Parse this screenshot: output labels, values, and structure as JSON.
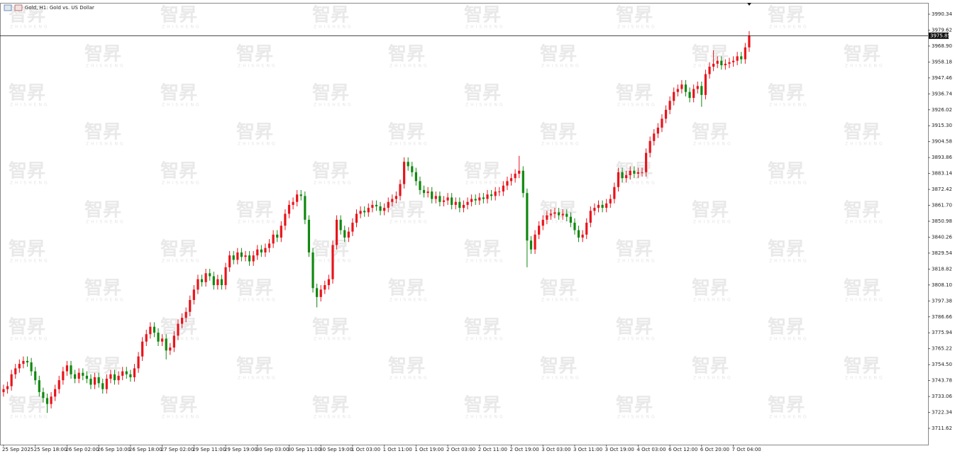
{
  "chart_data": {
    "type": "candlestick",
    "title": "Gold, H1: Gold vs. US Dollar",
    "watermark": {
      "text": "智昇",
      "subtext": "ZHISHENG"
    },
    "up_color": "#e8141c",
    "down_color": "#118811",
    "current_price": 3975.85,
    "ylim": [
      3700.64,
      3997.98
    ],
    "yticks": [
      3990.34,
      3979.62,
      {
        "value": 3968.9,
        "label": "3968.90"
      },
      3958.18,
      3947.46,
      3936.74,
      3926.02,
      {
        "value": 3915.3,
        "label": "3915.30"
      },
      3904.58,
      3893.86,
      3883.14,
      3872.42,
      {
        "value": 3861.7,
        "label": "3861.70"
      },
      3850.98,
      3840.26,
      3829.54,
      3818.82,
      {
        "value": 3808.1,
        "label": "3808.10"
      },
      3797.38,
      3786.66,
      3775.94,
      3765.22,
      {
        "value": 3754.5,
        "label": "3754.50"
      },
      3743.78,
      3733.06,
      3722.34,
      3711.62
    ],
    "categories": [
      "25 Sep 2025",
      null,
      null,
      null,
      null,
      null,
      null,
      null,
      "25 Sep 18:00",
      null,
      null,
      null,
      null,
      null,
      null,
      null,
      "26 Sep 02:00",
      null,
      null,
      null,
      null,
      null,
      null,
      null,
      "26 Sep 10:00",
      null,
      null,
      null,
      null,
      null,
      null,
      null,
      "26 Sep 18:00",
      null,
      null,
      null,
      null,
      null,
      null,
      null,
      "27 Sep 02:00",
      null,
      null,
      null,
      null,
      null,
      null,
      null,
      "29 Sep 11:00",
      null,
      null,
      null,
      null,
      null,
      null,
      null,
      "29 Sep 19:00",
      null,
      null,
      null,
      null,
      null,
      null,
      null,
      "30 Sep 03:00",
      null,
      null,
      null,
      null,
      null,
      null,
      null,
      "30 Sep 11:00",
      null,
      null,
      null,
      null,
      null,
      null,
      null,
      "30 Sep 19:00",
      null,
      null,
      null,
      null,
      null,
      null,
      null,
      "1 Oct 03:00",
      null,
      null,
      null,
      null,
      null,
      null,
      null,
      "1 Oct 11:00",
      null,
      null,
      null,
      null,
      null,
      null,
      null,
      "1 Oct 19:00",
      null,
      null,
      null,
      null,
      null,
      null,
      null,
      "2 Oct 03:00",
      null,
      null,
      null,
      null,
      null,
      null,
      null,
      "2 Oct 11:00",
      null,
      null,
      null,
      null,
      null,
      null,
      null,
      "2 Oct 19:00",
      null,
      null,
      null,
      null,
      null,
      null,
      null,
      "3 Oct 03:00",
      null,
      null,
      null,
      null,
      null,
      null,
      null,
      "3 Oct 11:00",
      null,
      null,
      null,
      null,
      null,
      null,
      null,
      "3 Oct 19:00",
      null,
      null,
      null,
      null,
      null,
      null,
      null,
      "4 Oct 03:00",
      null,
      null,
      null,
      null,
      null,
      null,
      null,
      "6 Oct 12:00",
      null,
      null,
      null,
      null,
      null,
      null,
      null,
      "6 Oct 20:00",
      null,
      null,
      null,
      null,
      null,
      null,
      null,
      "7 Oct 04:00",
      null,
      null,
      null,
      null
    ],
    "open": [
      3736,
      3738,
      3740,
      3748,
      3752,
      3755,
      3757,
      3756,
      3750,
      3744,
      3736,
      3732,
      3728,
      3733,
      3738,
      3744,
      3750,
      3754,
      3748,
      3745,
      3749,
      3747,
      3745,
      3741,
      3746,
      3742,
      3738,
      3745,
      3748,
      3744,
      3747,
      3750,
      3748,
      3746,
      3752,
      3760,
      3770,
      3775,
      3780,
      3776,
      3770,
      3772,
      3764,
      3766,
      3774,
      3782,
      3786,
      3790,
      3798,
      3805,
      3812,
      3810,
      3816,
      3814,
      3808,
      3812,
      3808,
      3820,
      3828,
      3825,
      3830,
      3827,
      3828,
      3824,
      3828,
      3832,
      3830,
      3833,
      3836,
      3842,
      3840,
      3848,
      3856,
      3862,
      3864,
      3869,
      3868,
      3852,
      3830,
      3806,
      3800,
      3805,
      3808,
      3812,
      3835,
      3852,
      3845,
      3840,
      3844,
      3850,
      3856,
      3858,
      3857,
      3860,
      3862,
      3861,
      3858,
      3860,
      3864,
      3866,
      3868,
      3876,
      3891,
      3888,
      3884,
      3878,
      3872,
      3870,
      3871,
      3866,
      3868,
      3864,
      3865,
      3867,
      3862,
      3864,
      3860,
      3862,
      3864,
      3866,
      3865,
      3867,
      3866,
      3869,
      3868,
      3871,
      3871,
      3875,
      3878,
      3880,
      3883,
      3885,
      3870,
      3838,
      3832,
      3842,
      3848,
      3852,
      3855,
      3856,
      3857,
      3855,
      3856,
      3854,
      3850,
      3845,
      3840,
      3842,
      3850,
      3858,
      3860,
      3862,
      3860,
      3863,
      3866,
      3874,
      3884,
      3880,
      3882,
      3885,
      3883,
      3884,
      3884,
      3897,
      3905,
      3910,
      3914,
      3920,
      3926,
      3932,
      3938,
      3940,
      3943,
      3938,
      3934,
      3940,
      3942,
      3936,
      3950,
      3955,
      3957,
      3959,
      3956,
      3957,
      3958,
      3959,
      3962,
      3960,
      3968
    ],
    "high": [
      3741,
      3743,
      3751,
      3755,
      3758,
      3760,
      3760,
      3759,
      3753,
      3747,
      3739,
      3735,
      3736,
      3741,
      3747,
      3753,
      3757,
      3757,
      3751,
      3752,
      3752,
      3750,
      3748,
      3749,
      3749,
      3745,
      3748,
      3751,
      3751,
      3750,
      3753,
      3753,
      3751,
      3755,
      3763,
      3773,
      3778,
      3783,
      3783,
      3779,
      3775,
      3775,
      3769,
      3777,
      3785,
      3789,
      3793,
      3801,
      3808,
      3815,
      3815,
      3819,
      3819,
      3817,
      3815,
      3815,
      3823,
      3831,
      3831,
      3833,
      3833,
      3831,
      3831,
      3831,
      3835,
      3835,
      3836,
      3839,
      3845,
      3845,
      3851,
      3859,
      3865,
      3867,
      3872,
      3872,
      3871,
      3855,
      3833,
      3809,
      3808,
      3811,
      3815,
      3838,
      3855,
      3855,
      3848,
      3847,
      3853,
      3859,
      3861,
      3861,
      3863,
      3865,
      3865,
      3864,
      3863,
      3867,
      3869,
      3871,
      3879,
      3894,
      3894,
      3891,
      3887,
      3881,
      3875,
      3874,
      3874,
      3871,
      3871,
      3868,
      3870,
      3870,
      3867,
      3867,
      3865,
      3867,
      3869,
      3869,
      3870,
      3870,
      3872,
      3872,
      3874,
      3874,
      3878,
      3881,
      3883,
      3886,
      3895,
      3888,
      3873,
      3841,
      3845,
      3851,
      3855,
      3858,
      3859,
      3860,
      3860,
      3859,
      3859,
      3857,
      3853,
      3848,
      3845,
      3853,
      3861,
      3863,
      3865,
      3865,
      3866,
      3869,
      3877,
      3887,
      3887,
      3885,
      3888,
      3888,
      3887,
      3887,
      3900,
      3908,
      3913,
      3917,
      3923,
      3929,
      3935,
      3941,
      3943,
      3946,
      3946,
      3941,
      3943,
      3945,
      3945,
      3953,
      3958,
      3966,
      3962,
      3962,
      3960,
      3961,
      3962,
      3965,
      3965,
      3971,
      3979
    ],
    "low": [
      3733,
      3735,
      3737,
      3745,
      3749,
      3752,
      3753,
      3747,
      3741,
      3733,
      3729,
      3722,
      3725,
      3730,
      3735,
      3741,
      3747,
      3745,
      3742,
      3742,
      3744,
      3742,
      3738,
      3738,
      3739,
      3735,
      3735,
      3742,
      3741,
      3741,
      3744,
      3745,
      3743,
      3743,
      3749,
      3757,
      3767,
      3772,
      3773,
      3767,
      3767,
      3758,
      3761,
      3763,
      3771,
      3779,
      3783,
      3787,
      3795,
      3802,
      3807,
      3807,
      3811,
      3805,
      3805,
      3805,
      3805,
      3817,
      3822,
      3822,
      3824,
      3824,
      3821,
      3821,
      3825,
      3827,
      3827,
      3830,
      3833,
      3837,
      3837,
      3845,
      3853,
      3859,
      3861,
      3865,
      3849,
      3827,
      3803,
      3793,
      3797,
      3802,
      3805,
      3809,
      3832,
      3842,
      3837,
      3837,
      3841,
      3847,
      3853,
      3854,
      3854,
      3857,
      3858,
      3855,
      3855,
      3857,
      3861,
      3863,
      3865,
      3873,
      3885,
      3881,
      3875,
      3869,
      3867,
      3867,
      3863,
      3863,
      3861,
      3861,
      3862,
      3859,
      3859,
      3857,
      3857,
      3859,
      3861,
      3862,
      3862,
      3863,
      3863,
      3865,
      3865,
      3868,
      3868,
      3872,
      3875,
      3877,
      3880,
      3867,
      3820,
      3829,
      3829,
      3839,
      3845,
      3849,
      3852,
      3853,
      3852,
      3852,
      3851,
      3847,
      3842,
      3837,
      3837,
      3839,
      3847,
      3855,
      3857,
      3857,
      3857,
      3860,
      3863,
      3871,
      3877,
      3877,
      3879,
      3880,
      3880,
      3881,
      3881,
      3894,
      3902,
      3907,
      3911,
      3917,
      3923,
      3929,
      3935,
      3937,
      3935,
      3931,
      3931,
      3937,
      3928,
      3933,
      3947,
      3952,
      3954,
      3953,
      3953,
      3954,
      3955,
      3956,
      3957,
      3957,
      3965
    ],
    "close": [
      3738,
      3740,
      3748,
      3752,
      3755,
      3757,
      3756,
      3750,
      3744,
      3736,
      3732,
      3728,
      3733,
      3738,
      3744,
      3750,
      3754,
      3748,
      3745,
      3749,
      3747,
      3745,
      3741,
      3746,
      3742,
      3738,
      3745,
      3748,
      3744,
      3747,
      3750,
      3748,
      3746,
      3752,
      3760,
      3770,
      3775,
      3780,
      3776,
      3770,
      3772,
      3764,
      3766,
      3774,
      3782,
      3786,
      3790,
      3798,
      3805,
      3812,
      3810,
      3816,
      3814,
      3808,
      3812,
      3808,
      3820,
      3828,
      3825,
      3830,
      3827,
      3828,
      3824,
      3828,
      3832,
      3830,
      3833,
      3836,
      3842,
      3840,
      3848,
      3856,
      3862,
      3864,
      3869,
      3868,
      3852,
      3830,
      3806,
      3800,
      3805,
      3808,
      3812,
      3835,
      3852,
      3845,
      3840,
      3844,
      3850,
      3856,
      3858,
      3857,
      3860,
      3862,
      3861,
      3858,
      3860,
      3864,
      3866,
      3868,
      3876,
      3891,
      3888,
      3884,
      3878,
      3872,
      3870,
      3871,
      3866,
      3868,
      3864,
      3865,
      3867,
      3862,
      3864,
      3860,
      3862,
      3864,
      3866,
      3865,
      3867,
      3866,
      3869,
      3868,
      3871,
      3871,
      3875,
      3878,
      3880,
      3883,
      3885,
      3870,
      3838,
      3832,
      3842,
      3848,
      3852,
      3855,
      3856,
      3857,
      3855,
      3856,
      3854,
      3850,
      3845,
      3840,
      3842,
      3850,
      3858,
      3860,
      3862,
      3860,
      3863,
      3866,
      3874,
      3884,
      3880,
      3882,
      3885,
      3883,
      3884,
      3884,
      3897,
      3905,
      3910,
      3914,
      3920,
      3926,
      3932,
      3938,
      3940,
      3943,
      3938,
      3934,
      3940,
      3942,
      3936,
      3950,
      3955,
      3957,
      3959,
      3956,
      3957,
      3958,
      3959,
      3962,
      3960,
      3968,
      3975.85
    ]
  }
}
